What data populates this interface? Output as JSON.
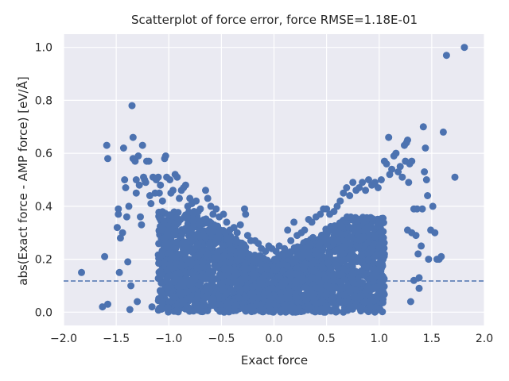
{
  "chart_data": {
    "type": "scatter",
    "title": "Scatterplot of force error, force RMSE=1.18E-01",
    "xlabel": "Exact force",
    "ylabel": "abs(Exact force - AMP force) [eV/Å]",
    "xlim": [
      -2.0,
      2.0
    ],
    "ylim": [
      -0.05,
      1.05
    ],
    "xticks": [
      -2.0,
      -1.5,
      -1.0,
      -0.5,
      0.0,
      0.5,
      1.0,
      1.5,
      2.0
    ],
    "xtick_labels": [
      "−2.0",
      "−1.5",
      "−1.0",
      "−0.5",
      "0.0",
      "0.5",
      "1.0",
      "1.5",
      "2.0"
    ],
    "yticks": [
      0.0,
      0.2,
      0.4,
      0.6,
      0.8,
      1.0
    ],
    "ytick_labels": [
      "0.0",
      "0.2",
      "0.4",
      "0.6",
      "0.8",
      "1.0"
    ],
    "grid": true,
    "background_color": "#eaeaf2",
    "marker_color": "#4c72b0",
    "reference_line": {
      "y": 0.118,
      "style": "dashed",
      "color": "#4c72b0"
    },
    "series": [
      {
        "points": [
          [
            -1.83,
            0.15
          ],
          [
            -1.63,
            0.02
          ],
          [
            -1.58,
            0.03
          ],
          [
            -1.61,
            0.21
          ],
          [
            -1.59,
            0.63
          ],
          [
            -1.58,
            0.58
          ],
          [
            -1.47,
            0.15
          ],
          [
            -1.49,
            0.32
          ],
          [
            -1.48,
            0.39
          ],
          [
            -1.48,
            0.37
          ],
          [
            -1.46,
            0.28
          ],
          [
            -1.44,
            0.3
          ],
          [
            -1.43,
            0.62
          ],
          [
            -1.42,
            0.5
          ],
          [
            -1.41,
            0.47
          ],
          [
            -1.4,
            0.36
          ],
          [
            -1.38,
            0.4
          ],
          [
            -1.39,
            0.19
          ],
          [
            -1.37,
            0.01
          ],
          [
            -1.36,
            0.1
          ],
          [
            -1.35,
            0.78
          ],
          [
            -1.34,
            0.66
          ],
          [
            -1.34,
            0.58
          ],
          [
            -1.32,
            0.57
          ],
          [
            -1.31,
            0.5
          ],
          [
            -1.31,
            0.45
          ],
          [
            -1.3,
            0.04
          ],
          [
            -1.29,
            0.59
          ],
          [
            -1.28,
            0.48
          ],
          [
            -1.27,
            0.36
          ],
          [
            -1.26,
            0.33
          ],
          [
            -1.25,
            0.63
          ],
          [
            -1.24,
            0.51
          ],
          [
            -1.23,
            0.5
          ],
          [
            -1.22,
            0.49
          ],
          [
            -1.21,
            0.57
          ],
          [
            -1.19,
            0.57
          ],
          [
            -1.18,
            0.44
          ],
          [
            -1.17,
            0.41
          ],
          [
            -1.16,
            0.02
          ],
          [
            -1.15,
            0.51
          ],
          [
            -1.13,
            0.45
          ],
          [
            -1.12,
            0.5
          ],
          [
            -1.1,
            0.51
          ],
          [
            -1.09,
            0.45
          ],
          [
            -1.08,
            0.48
          ],
          [
            -1.06,
            0.42
          ],
          [
            -1.04,
            0.58
          ],
          [
            -1.03,
            0.59
          ],
          [
            -1.02,
            0.51
          ],
          [
            -0.99,
            0.5
          ],
          [
            -0.98,
            0.45
          ],
          [
            -0.96,
            0.46
          ],
          [
            -0.94,
            0.52
          ],
          [
            -0.92,
            0.51
          ],
          [
            -0.9,
            0.43
          ],
          [
            -0.88,
            0.46
          ],
          [
            -0.86,
            0.47
          ],
          [
            -0.84,
            0.48
          ],
          [
            -0.82,
            0.4
          ],
          [
            -0.8,
            0.43
          ],
          [
            -0.78,
            0.41
          ],
          [
            -0.76,
            0.38
          ],
          [
            -0.74,
            0.42
          ],
          [
            -0.72,
            0.38
          ],
          [
            -0.7,
            0.39
          ],
          [
            -0.65,
            0.46
          ],
          [
            -0.63,
            0.43
          ],
          [
            -0.6,
            0.4
          ],
          [
            -0.58,
            0.37
          ],
          [
            -0.55,
            0.39
          ],
          [
            -0.52,
            0.36
          ],
          [
            -0.48,
            0.37
          ],
          [
            -0.45,
            0.34
          ],
          [
            -0.42,
            0.31
          ],
          [
            -0.38,
            0.32
          ],
          [
            -0.35,
            0.3
          ],
          [
            -0.32,
            0.33
          ],
          [
            -0.28,
            0.39
          ],
          [
            -0.27,
            0.37
          ],
          [
            -0.25,
            0.29
          ],
          [
            -0.22,
            0.27
          ],
          [
            -0.18,
            0.27
          ],
          [
            -0.15,
            0.26
          ],
          [
            -0.12,
            0.24
          ],
          [
            -0.08,
            0.23
          ],
          [
            -0.05,
            0.25
          ],
          [
            -0.02,
            0.24
          ],
          [
            0.02,
            0.23
          ],
          [
            0.05,
            0.25
          ],
          [
            0.08,
            0.22
          ],
          [
            0.1,
            0.24
          ],
          [
            0.13,
            0.31
          ],
          [
            0.16,
            0.27
          ],
          [
            0.19,
            0.34
          ],
          [
            0.22,
            0.29
          ],
          [
            0.26,
            0.3
          ],
          [
            0.29,
            0.31
          ],
          [
            0.33,
            0.35
          ],
          [
            0.36,
            0.34
          ],
          [
            0.4,
            0.36
          ],
          [
            0.44,
            0.37
          ],
          [
            0.47,
            0.39
          ],
          [
            0.5,
            0.39
          ],
          [
            0.53,
            0.37
          ],
          [
            0.57,
            0.38
          ],
          [
            0.6,
            0.4
          ],
          [
            0.63,
            0.42
          ],
          [
            0.66,
            0.45
          ],
          [
            0.69,
            0.47
          ],
          [
            0.72,
            0.44
          ],
          [
            0.75,
            0.49
          ],
          [
            0.78,
            0.46
          ],
          [
            0.81,
            0.47
          ],
          [
            0.84,
            0.49
          ],
          [
            0.87,
            0.46
          ],
          [
            0.9,
            0.5
          ],
          [
            0.93,
            0.48
          ],
          [
            0.96,
            0.49
          ],
          [
            0.99,
            0.47
          ],
          [
            1.02,
            0.5
          ],
          [
            1.05,
            0.57
          ],
          [
            1.07,
            0.56
          ],
          [
            1.09,
            0.66
          ],
          [
            1.1,
            0.52
          ],
          [
            1.12,
            0.54
          ],
          [
            1.14,
            0.59
          ],
          [
            1.16,
            0.6
          ],
          [
            1.18,
            0.53
          ],
          [
            1.2,
            0.55
          ],
          [
            1.22,
            0.51
          ],
          [
            1.24,
            0.63
          ],
          [
            1.25,
            0.57
          ],
          [
            1.26,
            0.64
          ],
          [
            1.27,
            0.65
          ],
          [
            1.29,
            0.56
          ],
          [
            1.31,
            0.57
          ],
          [
            1.33,
            0.39
          ],
          [
            1.35,
            0.29
          ],
          [
            1.37,
            0.22
          ],
          [
            1.38,
            0.13
          ],
          [
            1.4,
            0.25
          ],
          [
            1.41,
            0.39
          ],
          [
            1.42,
            0.7
          ],
          [
            1.43,
            0.53
          ],
          [
            1.44,
            0.62
          ],
          [
            1.45,
            0.5
          ],
          [
            1.46,
            0.44
          ],
          [
            1.47,
            0.2
          ],
          [
            1.49,
            0.31
          ],
          [
            1.51,
            0.4
          ],
          [
            1.53,
            0.3
          ],
          [
            1.55,
            0.2
          ],
          [
            1.57,
            0.2
          ],
          [
            1.59,
            0.21
          ],
          [
            1.61,
            0.68
          ],
          [
            1.64,
            0.97
          ],
          [
            1.72,
            0.51
          ],
          [
            1.81,
            1.0
          ],
          [
            1.38,
            0.09
          ],
          [
            1.33,
            0.12
          ],
          [
            1.3,
            0.04
          ],
          [
            1.31,
            0.3
          ],
          [
            1.36,
            0.39
          ],
          [
            1.28,
            0.49
          ],
          [
            1.27,
            0.31
          ]
        ]
      }
    ]
  }
}
